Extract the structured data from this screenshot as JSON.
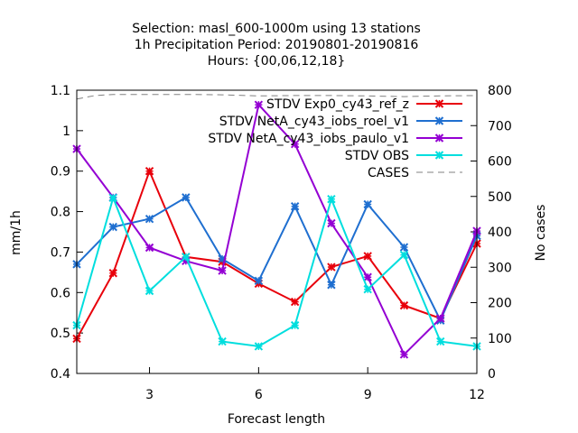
{
  "chart_data": {
    "type": "line",
    "title_lines": [
      "Selection: masl_600-1000m using     13 stations",
      "1h Precipitation    Period: 20190801-20190816",
      "Hours: {00,06,12,18}"
    ],
    "xlabel": "Forecast length",
    "ylabel": "mm/1h",
    "y2label": "No cases",
    "xlim": [
      1,
      12
    ],
    "ylim": [
      0.4,
      1.1
    ],
    "y2lim": [
      0,
      800
    ],
    "xticks": [
      3,
      6,
      9,
      12
    ],
    "yticks": [
      0.4,
      0.5,
      0.6,
      0.7,
      0.8,
      0.9,
      1,
      1.1
    ],
    "y2ticks": [
      0,
      100,
      200,
      300,
      400,
      500,
      600,
      700,
      800
    ],
    "grid": false,
    "legend_position": "top-right",
    "x": [
      1,
      2,
      3,
      4,
      5,
      6,
      7,
      8,
      9,
      10,
      11,
      12
    ],
    "series": [
      {
        "name": "STDV Exp0_cy43_ref_z",
        "color": "#e8000b",
        "marker": "x",
        "axis": "y",
        "values": [
          0.486,
          0.648,
          0.9,
          0.688,
          0.676,
          0.622,
          0.577,
          0.663,
          0.69,
          0.568,
          0.536,
          0.721
        ]
      },
      {
        "name": "STDV NetA_cy43_iobs_roel_v1",
        "color": "#1f6fd0",
        "marker": "x",
        "axis": "y",
        "values": [
          0.67,
          0.762,
          0.782,
          0.835,
          0.683,
          0.629,
          0.813,
          0.619,
          0.818,
          0.712,
          0.531,
          0.74
        ]
      },
      {
        "name": "STDV NetA_cy43_iobs_paulo_v1",
        "color": "#9400d3",
        "marker": "x",
        "axis": "y",
        "values": [
          0.955,
          0.835,
          0.711,
          0.678,
          0.654,
          1.064,
          0.967,
          0.771,
          0.638,
          0.447,
          0.536,
          0.752
        ]
      },
      {
        "name": "STDV OBS",
        "color": "#00dede",
        "marker": "x",
        "axis": "y",
        "values": [
          0.519,
          0.834,
          0.604,
          0.688,
          0.479,
          0.467,
          0.519,
          0.831,
          0.608,
          0.693,
          0.479,
          0.467
        ]
      },
      {
        "name": "CASES",
        "color": "#808080",
        "marker": "none",
        "dash": true,
        "axis": "y2",
        "x": [
          1,
          1.5,
          2,
          3,
          4,
          5,
          6,
          7,
          8,
          9,
          10,
          11,
          12
        ],
        "values": [
          775,
          785,
          788,
          788,
          788,
          787,
          784,
          785,
          785,
          784,
          782,
          784,
          785
        ]
      }
    ]
  }
}
